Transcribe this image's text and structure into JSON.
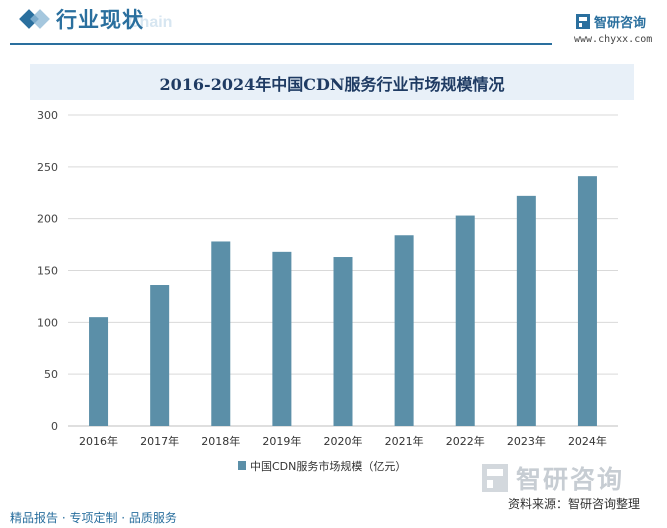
{
  "header": {
    "section_title": "行业现状",
    "watermark": "Chain",
    "brand_name": "智研咨询",
    "brand_url": "www.chyxx.com"
  },
  "chart_data": {
    "type": "bar",
    "title": "2016-2024年中国CDN服务行业市场规模情况",
    "categories": [
      "2016年",
      "2017年",
      "2018年",
      "2019年",
      "2020年",
      "2021年",
      "2022年",
      "2023年",
      "2024年"
    ],
    "series": [
      {
        "name": "中国CDN服务市场规模（亿元）",
        "values": [
          105,
          136,
          178,
          168,
          163,
          184,
          203,
          222,
          241
        ]
      }
    ],
    "ylim": [
      0,
      300
    ],
    "yticks": [
      0,
      50,
      100,
      150,
      200,
      250,
      300
    ],
    "grid": true,
    "legend": "bottom",
    "colors": {
      "bar": "#5b8fa8",
      "grid": "#d9d9d9",
      "axis": "#bfbfbf"
    }
  },
  "footer": {
    "left_text": "精品报告 · 专项定制 · 品质服务",
    "watermark_brand": "智研咨询",
    "source": "资料来源：智研咨询整理"
  }
}
